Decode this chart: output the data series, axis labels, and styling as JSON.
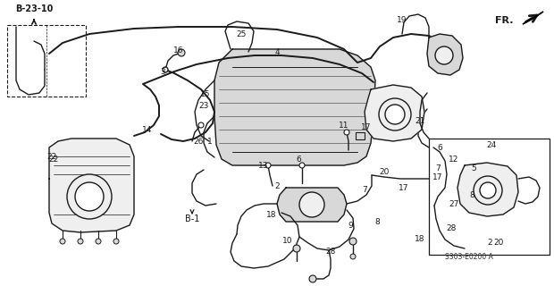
{
  "bg_color": "#ffffff",
  "line_color": "#1a1a1a",
  "part_code": "S303-E0200 A",
  "direction_label": "FR.",
  "ref_label": "B-23-10",
  "ref_label2": "B-1",
  "fig_w": 6.2,
  "fig_h": 3.2,
  "dpi": 100,
  "lw_thick": 1.4,
  "lw_med": 1.0,
  "lw_thin": 0.7,
  "gray_fill": "#d8d8d8",
  "light_fill": "#efefef"
}
